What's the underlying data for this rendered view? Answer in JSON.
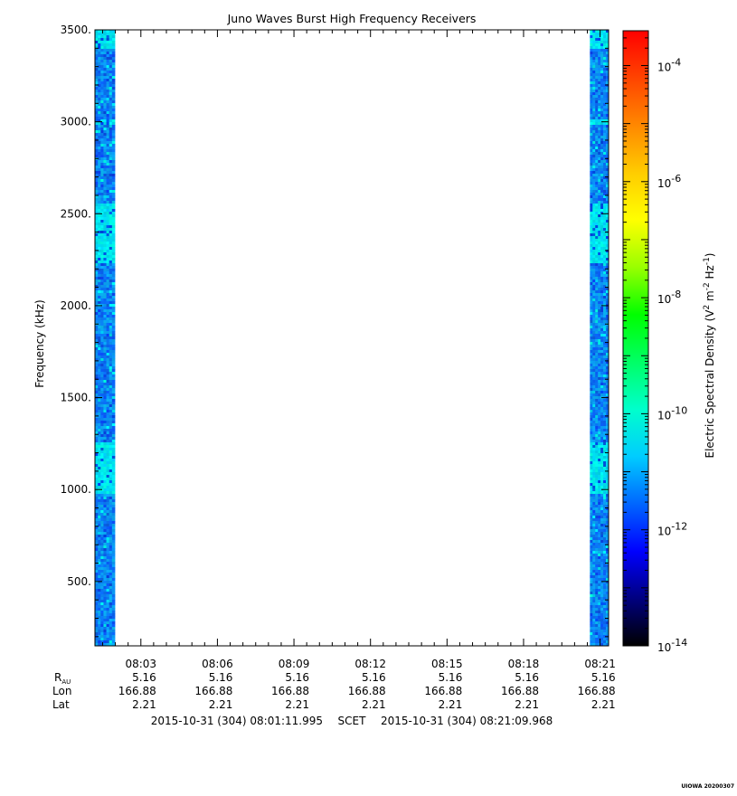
{
  "chart_data": {
    "type": "heatmap",
    "title": "Juno Waves Burst High Frequency Receivers",
    "ylabel": "Frequency (kHz)",
    "ylim": [
      150,
      3500
    ],
    "yticks": [
      500,
      1000,
      1500,
      2000,
      2500,
      3000,
      3500
    ],
    "ytick_labels": [
      "500.",
      "1000.",
      "1500.",
      "2000.",
      "2500.",
      "3000.",
      "3500."
    ],
    "x_unit": "minutes after 08:00 UT",
    "xlim": [
      1.1999,
      21.3328
    ],
    "xticks": [
      3,
      6,
      9,
      12,
      15,
      18,
      21
    ],
    "xtick_labels": [
      "08:03",
      "08:06",
      "08:09",
      "08:12",
      "08:15",
      "08:18",
      "08:21"
    ],
    "ephemeris": {
      "row_labels": [
        "RAU",
        "Lon",
        "Lat"
      ],
      "RAU": [
        "5.16",
        "5.16",
        "5.16",
        "5.16",
        "5.16",
        "5.16",
        "5.16"
      ],
      "Lon": [
        "166.88",
        "166.88",
        "166.88",
        "166.88",
        "166.88",
        "166.88",
        "166.88"
      ],
      "Lat": [
        "2.21",
        "2.21",
        "2.21",
        "2.21",
        "2.21",
        "2.21",
        "2.21"
      ]
    },
    "data_blocks": [
      {
        "x_start": 1.2,
        "x_end": 1.98,
        "level": "1e-12 to 1e-11"
      },
      {
        "x_start": 20.6,
        "x_end": 21.33,
        "level": "1e-12 to 1e-11"
      }
    ],
    "colorbar": {
      "label": "Electric Spectral Density (V² m⁻² Hz⁻¹)",
      "log_min": -14,
      "log_max": -3.4,
      "ticks": [
        -14,
        -12,
        -10,
        -8,
        -6,
        -4
      ],
      "tick_labels": [
        "10-14",
        "10-12",
        "10-10",
        "10-8",
        "10-6",
        "10-4"
      ],
      "colors": [
        "#000000",
        "#00007f",
        "#0000ff",
        "#0066ff",
        "#00ccff",
        "#00ffcc",
        "#00ff66",
        "#00ff00",
        "#99ff00",
        "#ffff00",
        "#ffcc00",
        "#ff8800",
        "#ff4400",
        "#ff0000"
      ]
    },
    "time_range": {
      "start": "2015-10-31 (304) 08:01:11.995",
      "label": "SCET",
      "end": "2015-10-31 (304) 08:21:09.968"
    },
    "footer_stamp": "UIOWA 20200307"
  }
}
